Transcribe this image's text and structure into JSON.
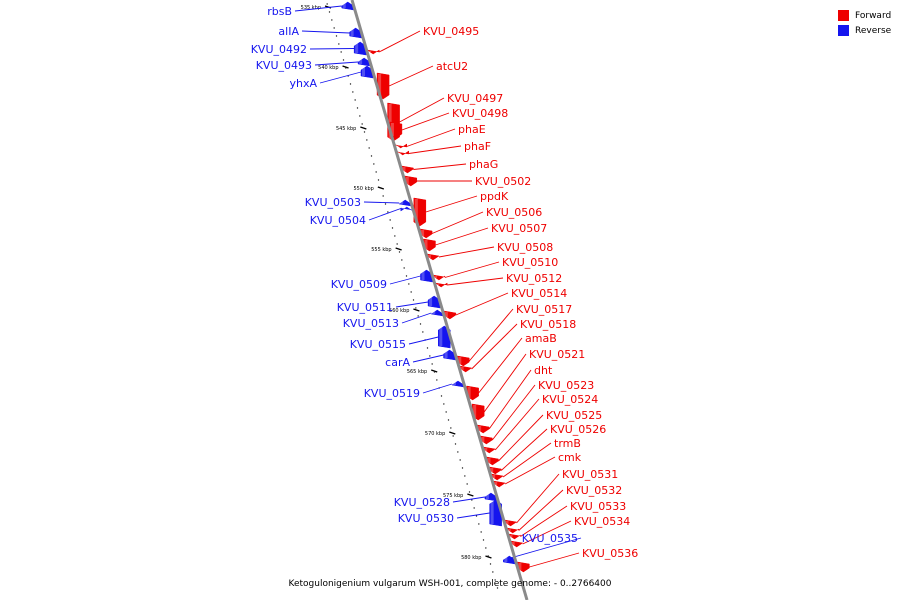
{
  "caption": "Ketogulonigenium vulgarum WSH-001, complete genome: - 0..2766400",
  "legend": [
    {
      "label": "Forward",
      "color": "#ee0000"
    },
    {
      "label": "Reverse",
      "color": "#1515ee"
    }
  ],
  "colors": {
    "forward": "#ee0000",
    "reverse": "#1515ee",
    "backbone": "#8a8a8a"
  },
  "scale_ticks": [
    "535 kbp",
    "540 kbp",
    "545 kbp",
    "550 kbp",
    "555 kbp",
    "560 kbp",
    "565 kbp",
    "570 kbp",
    "575 kbp",
    "580 kbp"
  ],
  "genes": [
    {
      "name": "rbsB",
      "strand": "reverse"
    },
    {
      "name": "alIA",
      "strand": "reverse"
    },
    {
      "name": "KVU_0492",
      "strand": "reverse"
    },
    {
      "name": "KVU_0493",
      "strand": "reverse"
    },
    {
      "name": "yhxA",
      "strand": "reverse"
    },
    {
      "name": "KVU_0495",
      "strand": "forward"
    },
    {
      "name": "atcU2",
      "strand": "forward"
    },
    {
      "name": "KVU_0497",
      "strand": "forward"
    },
    {
      "name": "KVU_0498",
      "strand": "forward"
    },
    {
      "name": "phaE",
      "strand": "forward"
    },
    {
      "name": "phaF",
      "strand": "forward"
    },
    {
      "name": "phaG",
      "strand": "forward"
    },
    {
      "name": "KVU_0502",
      "strand": "forward"
    },
    {
      "name": "KVU_0503",
      "strand": "reverse"
    },
    {
      "name": "KVU_0504",
      "strand": "reverse"
    },
    {
      "name": "ppdK",
      "strand": "forward"
    },
    {
      "name": "KVU_0506",
      "strand": "forward"
    },
    {
      "name": "KVU_0507",
      "strand": "forward"
    },
    {
      "name": "KVU_0508",
      "strand": "forward"
    },
    {
      "name": "KVU_0509",
      "strand": "reverse"
    },
    {
      "name": "KVU_0510",
      "strand": "forward"
    },
    {
      "name": "KVU_0511",
      "strand": "reverse"
    },
    {
      "name": "KVU_0512",
      "strand": "forward"
    },
    {
      "name": "KVU_0513",
      "strand": "reverse"
    },
    {
      "name": "KVU_0514",
      "strand": "forward"
    },
    {
      "name": "KVU_0515",
      "strand": "reverse"
    },
    {
      "name": "KVU_0517",
      "strand": "forward"
    },
    {
      "name": "KVU_0518",
      "strand": "forward"
    },
    {
      "name": "carA",
      "strand": "reverse"
    },
    {
      "name": "amaB",
      "strand": "forward"
    },
    {
      "name": "KVU_0519",
      "strand": "reverse"
    },
    {
      "name": "KVU_0521",
      "strand": "forward"
    },
    {
      "name": "dht",
      "strand": "forward"
    },
    {
      "name": "KVU_0523",
      "strand": "forward"
    },
    {
      "name": "KVU_0524",
      "strand": "forward"
    },
    {
      "name": "KVU_0525",
      "strand": "forward"
    },
    {
      "name": "KVU_0526",
      "strand": "forward"
    },
    {
      "name": "trmB",
      "strand": "forward"
    },
    {
      "name": "cmk",
      "strand": "forward"
    },
    {
      "name": "KVU_0528",
      "strand": "reverse"
    },
    {
      "name": "KVU_0530",
      "strand": "reverse"
    },
    {
      "name": "KVU_0531",
      "strand": "forward"
    },
    {
      "name": "KVU_0532",
      "strand": "forward"
    },
    {
      "name": "KVU_0533",
      "strand": "forward"
    },
    {
      "name": "KVU_0534",
      "strand": "forward"
    },
    {
      "name": "KVU_0535",
      "strand": "reverse"
    },
    {
      "name": "KVU_0536",
      "strand": "forward"
    }
  ]
}
